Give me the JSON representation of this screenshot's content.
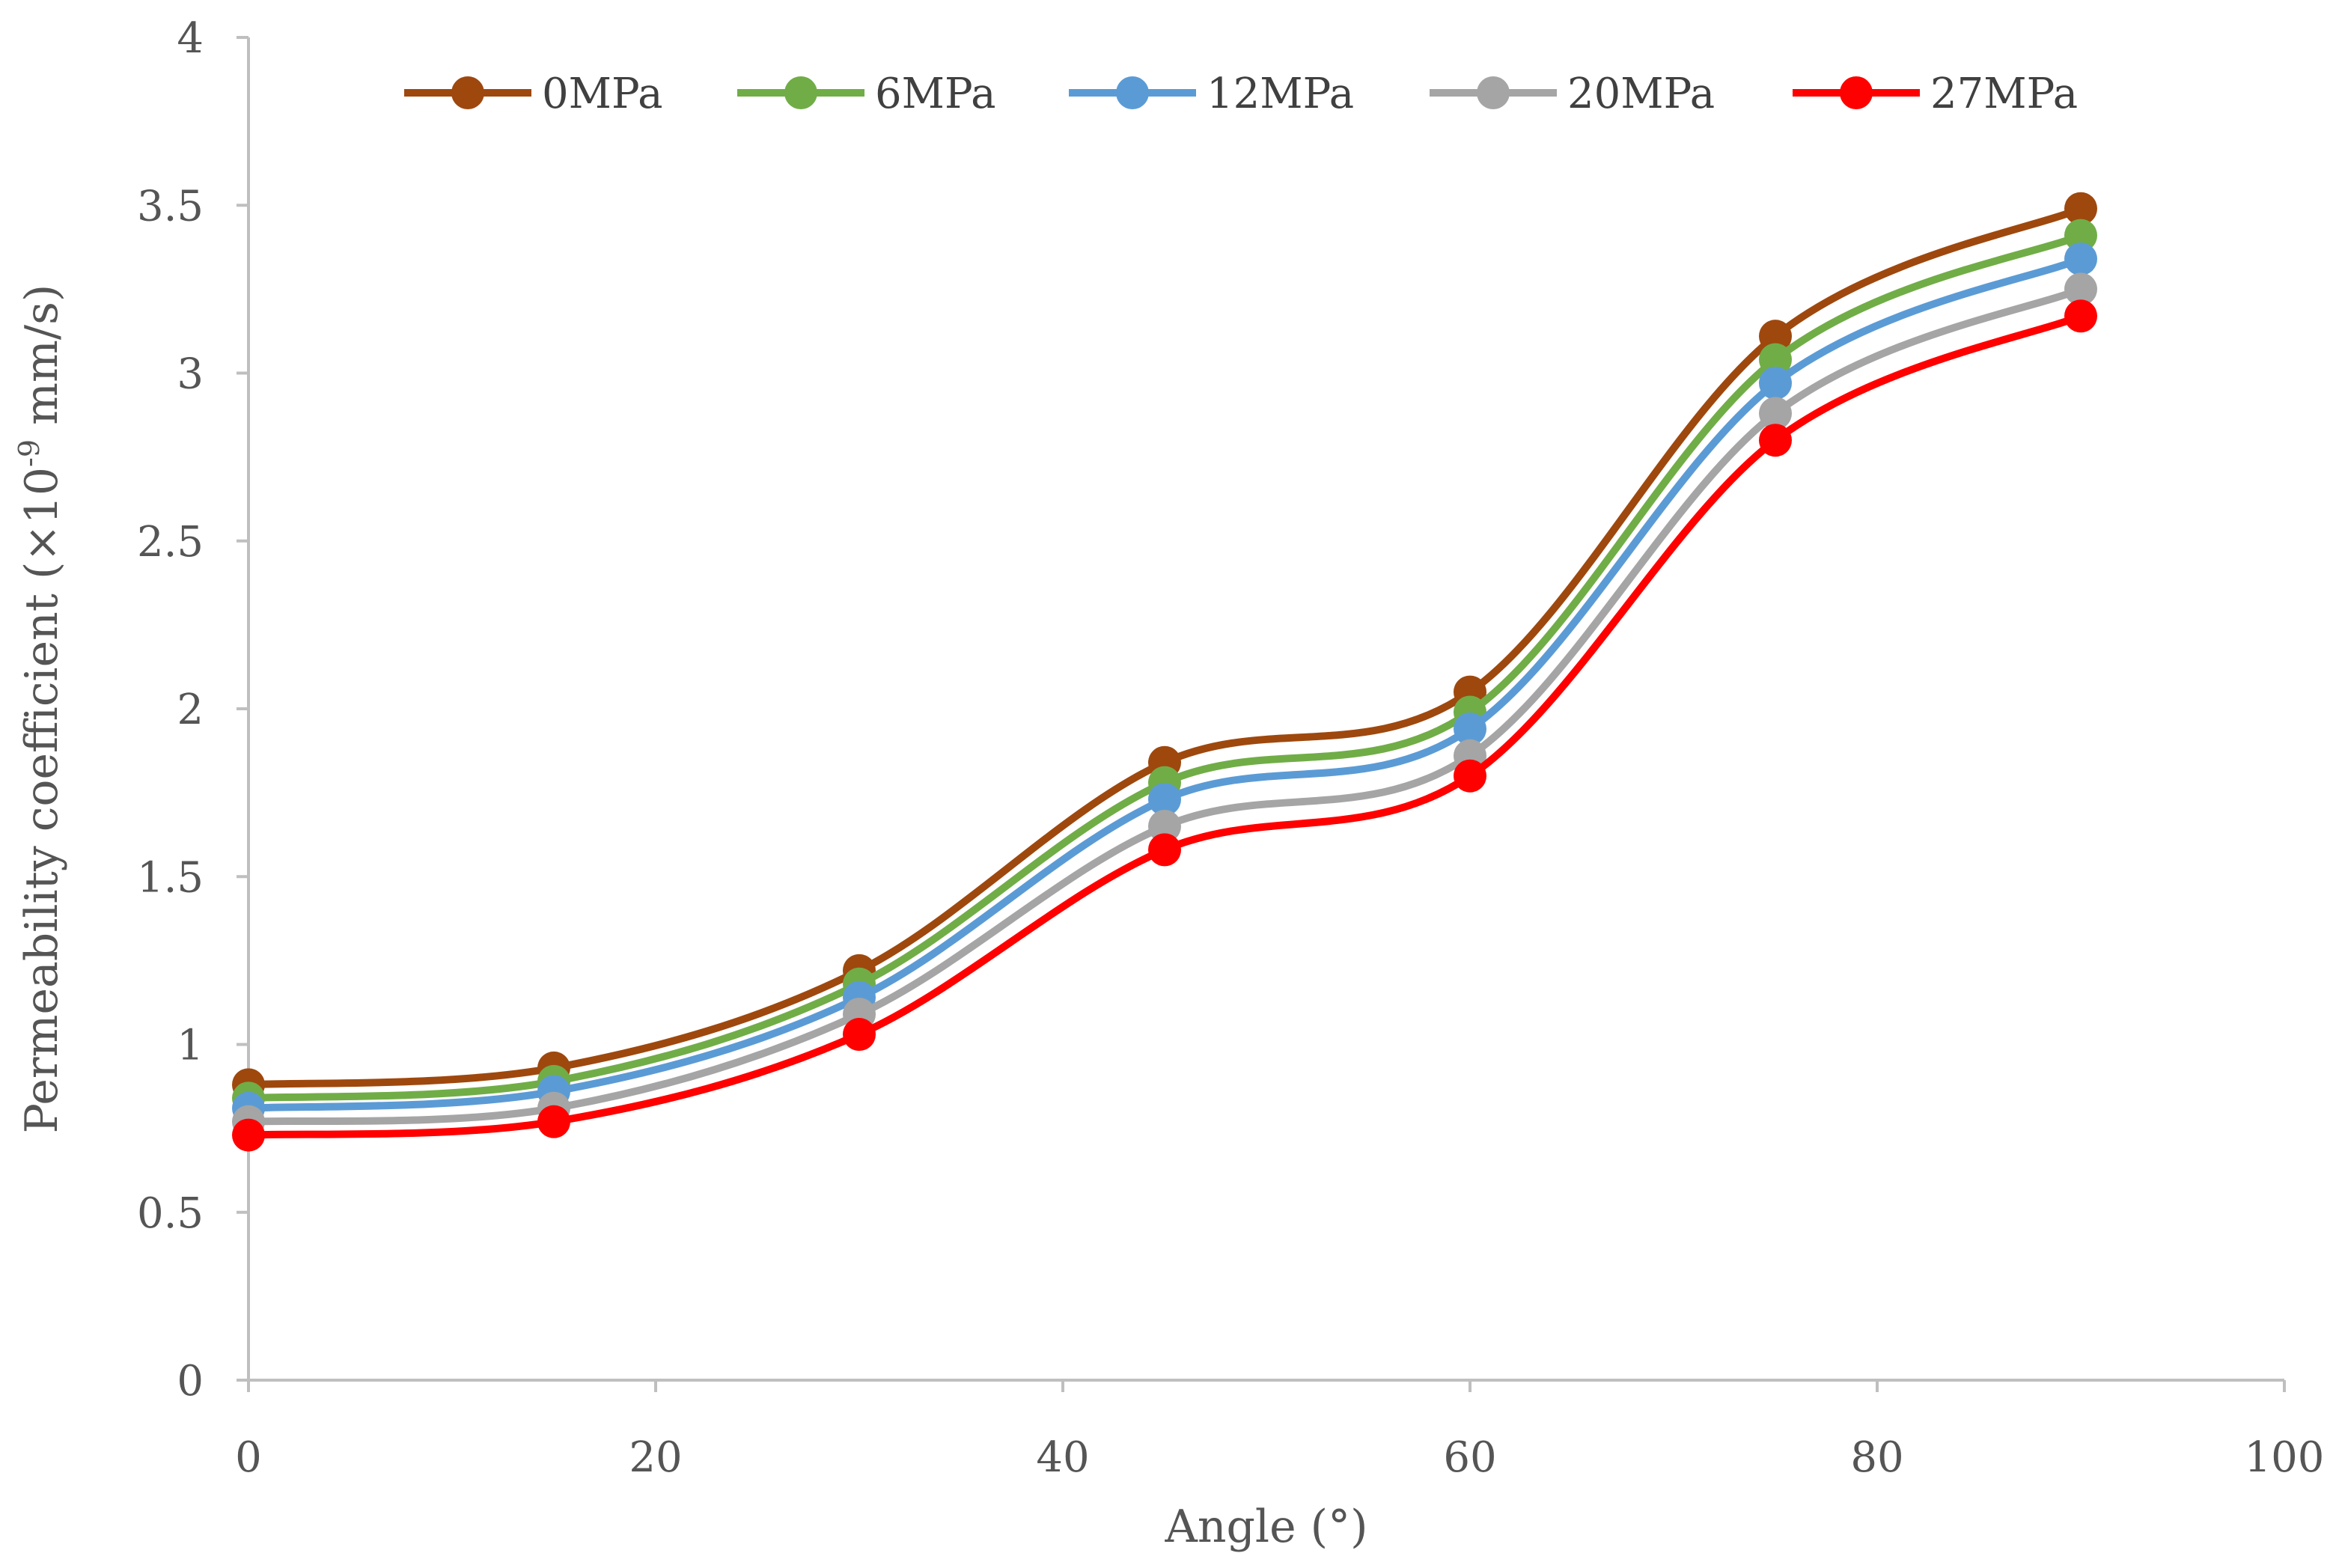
{
  "chart_data": {
    "type": "line",
    "title": "",
    "xlabel": "Angle  (°)",
    "ylabel_main": "Permeability coefficient (×10",
    "ylabel_sup": "-9",
    "ylabel_end": " mm/s)",
    "xlim": [
      0,
      100
    ],
    "ylim": [
      0,
      4
    ],
    "xticks": [
      0,
      20,
      40,
      60,
      80,
      100
    ],
    "yticks": [
      "0",
      "0.5",
      "1",
      "1.5",
      "2",
      "2.5",
      "3",
      "3.5",
      "4"
    ],
    "smooth": true,
    "grid": false,
    "legend_position": "top",
    "x": [
      0,
      15,
      30,
      45,
      60,
      75,
      90
    ],
    "series": [
      {
        "name": "0MPa",
        "color": "#9e480e",
        "values": [
          0.88,
          0.93,
          1.22,
          1.84,
          2.05,
          3.11,
          3.49
        ]
      },
      {
        "name": "6MPa",
        "color": "#70ad47",
        "values": [
          0.84,
          0.89,
          1.18,
          1.78,
          1.99,
          3.04,
          3.41
        ]
      },
      {
        "name": "12MPa",
        "color": "#5b9bd5",
        "values": [
          0.81,
          0.86,
          1.14,
          1.73,
          1.94,
          2.97,
          3.34
        ]
      },
      {
        "name": "20MPa",
        "color": "#a5a5a5",
        "values": [
          0.77,
          0.81,
          1.09,
          1.65,
          1.86,
          2.88,
          3.25
        ]
      },
      {
        "name": "27MPa",
        "color": "#ff0000",
        "values": [
          0.73,
          0.77,
          1.03,
          1.58,
          1.8,
          2.8,
          3.17
        ]
      }
    ]
  }
}
